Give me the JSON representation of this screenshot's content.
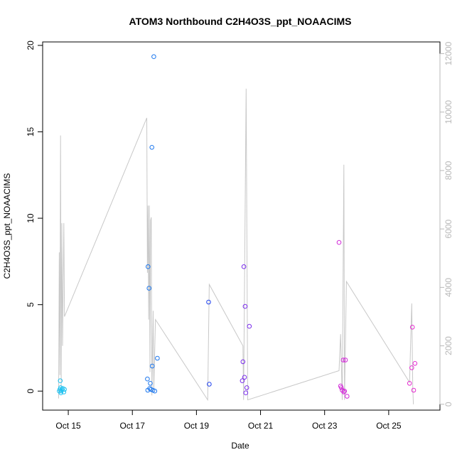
{
  "chart_data": {
    "type": "scatter",
    "title": "ATOM3 Northbound C2H4O3S_ppt_NOAACIMS",
    "xlabel": "Date",
    "ylabel": "C2H4O3S_ppt_NOAACIMS",
    "x_unit": "days (October)",
    "xlim": [
      14.2,
      26.6
    ],
    "ylim": [
      -1.1,
      20.2
    ],
    "x_ticks": [
      {
        "value": 15,
        "label": "Oct 15"
      },
      {
        "value": 17,
        "label": "Oct 17"
      },
      {
        "value": 19,
        "label": "Oct 19"
      },
      {
        "value": 21,
        "label": "Oct 21"
      },
      {
        "value": 23,
        "label": "Oct 23"
      },
      {
        "value": 25,
        "label": "Oct 25"
      }
    ],
    "y_ticks": [
      {
        "value": 0,
        "label": "0"
      },
      {
        "value": 5,
        "label": "5"
      },
      {
        "value": 10,
        "label": "10"
      },
      {
        "value": 15,
        "label": "15"
      },
      {
        "value": 20,
        "label": "20"
      }
    ],
    "y2lim": [
      -200,
      12400
    ],
    "y2_ticks": [
      {
        "value": 0,
        "label": "0"
      },
      {
        "value": 2000,
        "label": "2000"
      },
      {
        "value": 4000,
        "label": "4000"
      },
      {
        "value": 6000,
        "label": "6000"
      },
      {
        "value": 8000,
        "label": "8000"
      },
      {
        "value": 10000,
        "label": "10000"
      },
      {
        "value": 12000,
        "label": "12000"
      }
    ],
    "grid": false,
    "points": [
      {
        "x": 14.72,
        "y": 0.0,
        "color": "#22c2f0"
      },
      {
        "x": 14.74,
        "y": 0.1,
        "color": "#22c2f0"
      },
      {
        "x": 14.75,
        "y": 0.6,
        "color": "#22c2f0"
      },
      {
        "x": 14.76,
        "y": 0.2,
        "color": "#22c2f0"
      },
      {
        "x": 14.77,
        "y": -0.1,
        "color": "#22c2f0"
      },
      {
        "x": 14.78,
        "y": 0.0,
        "color": "#22c2f0"
      },
      {
        "x": 14.8,
        "y": 0.1,
        "color": "#22c2f0"
      },
      {
        "x": 14.83,
        "y": 0.15,
        "color": "#22c2f0"
      },
      {
        "x": 14.86,
        "y": -0.05,
        "color": "#22c2f0"
      },
      {
        "x": 14.88,
        "y": 0.1,
        "color": "#22c2f0"
      },
      {
        "x": 17.47,
        "y": 0.7,
        "color": "#1e78ee"
      },
      {
        "x": 17.48,
        "y": 0.05,
        "color": "#1e78ee"
      },
      {
        "x": 17.49,
        "y": 7.2,
        "color": "#1e78ee"
      },
      {
        "x": 17.52,
        "y": 5.95,
        "color": "#1e78ee"
      },
      {
        "x": 17.54,
        "y": 0.15,
        "color": "#1e78ee"
      },
      {
        "x": 17.56,
        "y": 0.45,
        "color": "#1e78ee"
      },
      {
        "x": 17.58,
        "y": 0.1,
        "color": "#1e78ee"
      },
      {
        "x": 17.61,
        "y": 14.1,
        "color": "#1e78ee"
      },
      {
        "x": 17.62,
        "y": 1.45,
        "color": "#1e78ee"
      },
      {
        "x": 17.64,
        "y": 0.05,
        "color": "#1e78ee"
      },
      {
        "x": 17.67,
        "y": 19.35,
        "color": "#1e78ee"
      },
      {
        "x": 17.7,
        "y": 0.0,
        "color": "#1e78ee"
      },
      {
        "x": 17.78,
        "y": 1.9,
        "color": "#1e78ee"
      },
      {
        "x": 19.38,
        "y": 5.15,
        "color": "#2244ee"
      },
      {
        "x": 19.4,
        "y": 0.4,
        "color": "#2244ee"
      },
      {
        "x": 20.43,
        "y": 0.6,
        "color": "#7a2cec"
      },
      {
        "x": 20.45,
        "y": 1.7,
        "color": "#7a2cec"
      },
      {
        "x": 20.48,
        "y": 7.2,
        "color": "#7a2cec"
      },
      {
        "x": 20.5,
        "y": 0.8,
        "color": "#7a2cec"
      },
      {
        "x": 20.52,
        "y": 4.9,
        "color": "#7a2cec"
      },
      {
        "x": 20.54,
        "y": -0.1,
        "color": "#7a2cec"
      },
      {
        "x": 20.57,
        "y": 0.2,
        "color": "#7a2cec"
      },
      {
        "x": 20.65,
        "y": 3.75,
        "color": "#7a2cec"
      },
      {
        "x": 23.45,
        "y": 8.6,
        "color": "#d22ad8"
      },
      {
        "x": 23.5,
        "y": 0.3,
        "color": "#d22ad8"
      },
      {
        "x": 23.52,
        "y": 0.2,
        "color": "#d22ad8"
      },
      {
        "x": 23.55,
        "y": 0.05,
        "color": "#d22ad8"
      },
      {
        "x": 23.58,
        "y": 1.8,
        "color": "#d22ad8"
      },
      {
        "x": 23.6,
        "y": -0.05,
        "color": "#d22ad8"
      },
      {
        "x": 23.62,
        "y": 0.0,
        "color": "#d22ad8"
      },
      {
        "x": 23.65,
        "y": 1.8,
        "color": "#d22ad8"
      },
      {
        "x": 23.7,
        "y": -0.3,
        "color": "#d22ad8"
      },
      {
        "x": 25.65,
        "y": 0.45,
        "color": "#e52ad0"
      },
      {
        "x": 25.72,
        "y": 1.35,
        "color": "#e52ad0"
      },
      {
        "x": 25.74,
        "y": 3.7,
        "color": "#e52ad0"
      },
      {
        "x": 25.78,
        "y": 0.05,
        "color": "#e52ad0"
      },
      {
        "x": 25.82,
        "y": 1.6,
        "color": "#e52ad0"
      }
    ],
    "altitude_series": {
      "style": "line",
      "color": "#c8c8c8",
      "axis": "right",
      "points": [
        [
          14.7,
          200
        ],
        [
          14.72,
          5200
        ],
        [
          14.74,
          1000
        ],
        [
          14.76,
          9200
        ],
        [
          14.78,
          600
        ],
        [
          14.8,
          6200
        ],
        [
          14.82,
          2000
        ],
        [
          14.86,
          6200
        ],
        [
          14.88,
          3000
        ],
        [
          17.45,
          9800
        ],
        [
          17.47,
          4500
        ],
        [
          17.49,
          6800
        ],
        [
          17.51,
          2900
        ],
        [
          17.53,
          6800
        ],
        [
          17.55,
          1100
        ],
        [
          17.57,
          6300
        ],
        [
          17.59,
          6400
        ],
        [
          17.61,
          300
        ],
        [
          17.65,
          3200
        ],
        [
          17.67,
          500
        ],
        [
          17.72,
          2900
        ],
        [
          19.35,
          150
        ],
        [
          19.4,
          4100
        ],
        [
          20.45,
          2000
        ],
        [
          20.47,
          150
        ],
        [
          20.55,
          10800
        ],
        [
          20.6,
          150
        ],
        [
          23.45,
          1150
        ],
        [
          23.5,
          2400
        ],
        [
          23.55,
          150
        ],
        [
          23.6,
          8200
        ],
        [
          23.62,
          150
        ],
        [
          23.68,
          4200
        ],
        [
          25.65,
          750
        ],
        [
          25.72,
          3450
        ],
        [
          25.75,
          600
        ],
        [
          25.77,
          0
        ]
      ]
    }
  }
}
